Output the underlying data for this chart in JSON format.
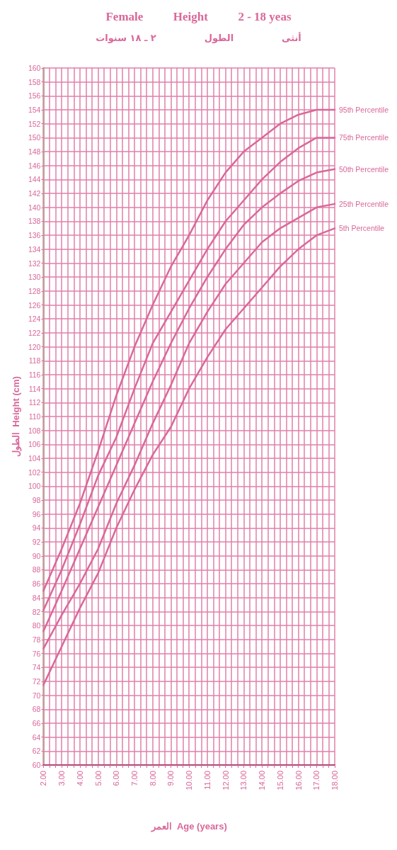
{
  "chart_data": {
    "type": "line",
    "title": "Female          Height          2 - 18 yeas",
    "subtitle": "أنثى               الطول               ٢ ـ ١٨ سنوات",
    "xlabel": "العمر  Age (years)",
    "ylabel": "الطول  Height (cm)",
    "x": [
      2,
      3,
      4,
      5,
      6,
      7,
      8,
      9,
      10,
      11,
      12,
      13,
      14,
      15,
      16,
      17,
      18
    ],
    "series": [
      {
        "name": "95th Percentile",
        "color": "#d9689a",
        "values": [
          85,
          91,
          97.5,
          105,
          113,
          120,
          126,
          131.5,
          136,
          141,
          145,
          148,
          150,
          152,
          153.3,
          154,
          154
        ]
      },
      {
        "name": "75th Percentile",
        "color": "#d9689a",
        "values": [
          82.2,
          88,
          94.5,
          101.5,
          107,
          114,
          120.5,
          125,
          129.5,
          134,
          138,
          141,
          144,
          146.5,
          148.5,
          150,
          150
        ]
      },
      {
        "name": "50th Percentile",
        "color": "#d9689a",
        "values": [
          79.2,
          85,
          91,
          97,
          103,
          109,
          115,
          120.5,
          125.5,
          130,
          134,
          137.5,
          140,
          142,
          143.8,
          145,
          145.5
        ]
      },
      {
        "name": "25th Percentile",
        "color": "#d9689a",
        "values": [
          76.7,
          81.5,
          86,
          91,
          97.5,
          103,
          109,
          114.5,
          120.5,
          125,
          129,
          132,
          135,
          137,
          138.5,
          140,
          140.5
        ]
      },
      {
        "name": "5th Percentile",
        "color": "#d9689a",
        "values": [
          71.5,
          77,
          82.5,
          87.5,
          94,
          99.5,
          104.5,
          108.5,
          114,
          118.5,
          122.5,
          125.5,
          128.5,
          131.5,
          134,
          136,
          137
        ]
      }
    ],
    "xlim": [
      2,
      18
    ],
    "xticks": [
      {
        "value": 2,
        "label": "2.00"
      },
      {
        "value": 2.3333,
        "label": null
      },
      {
        "value": 2.6667,
        "label": null
      },
      {
        "value": 3,
        "label": "3.00"
      },
      {
        "value": 3.3333,
        "label": null
      },
      {
        "value": 3.6667,
        "label": null
      },
      {
        "value": 4,
        "label": "4.00"
      },
      {
        "value": 4.3333,
        "label": null
      },
      {
        "value": 4.6667,
        "label": null
      },
      {
        "value": 5,
        "label": "5.00"
      },
      {
        "value": 5.3333,
        "label": null
      },
      {
        "value": 5.6667,
        "label": null
      },
      {
        "value": 6,
        "label": "6.00"
      },
      {
        "value": 6.3333,
        "label": null
      },
      {
        "value": 6.6667,
        "label": null
      },
      {
        "value": 7,
        "label": "7.00"
      },
      {
        "value": 7.3333,
        "label": null
      },
      {
        "value": 7.6667,
        "label": null
      },
      {
        "value": 8,
        "label": "8.00"
      },
      {
        "value": 8.3333,
        "label": null
      },
      {
        "value": 8.6667,
        "label": null
      },
      {
        "value": 9,
        "label": "9.00"
      },
      {
        "value": 9.3333,
        "label": null
      },
      {
        "value": 9.6667,
        "label": null
      },
      {
        "value": 10,
        "label": "10.00"
      },
      {
        "value": 10.3333,
        "label": null
      },
      {
        "value": 10.6667,
        "label": null
      },
      {
        "value": 11,
        "label": "11.00"
      },
      {
        "value": 11.3333,
        "label": null
      },
      {
        "value": 11.6667,
        "label": null
      },
      {
        "value": 12,
        "label": "12.00"
      },
      {
        "value": 12.3333,
        "label": null
      },
      {
        "value": 12.6667,
        "label": null
      },
      {
        "value": 13,
        "label": "13.00"
      },
      {
        "value": 13.3333,
        "label": null
      },
      {
        "value": 13.6667,
        "label": null
      },
      {
        "value": 14,
        "label": "14.00"
      },
      {
        "value": 14.3333,
        "label": null
      },
      {
        "value": 14.6667,
        "label": null
      },
      {
        "value": 15,
        "label": "15.00"
      },
      {
        "value": 15.3333,
        "label": null
      },
      {
        "value": 15.6667,
        "label": null
      },
      {
        "value": 16,
        "label": "16.00"
      },
      {
        "value": 16.3333,
        "label": null
      },
      {
        "value": 16.6667,
        "label": null
      },
      {
        "value": 17,
        "label": "17.00"
      },
      {
        "value": 17.3333,
        "label": null
      },
      {
        "value": 17.6667,
        "label": null
      },
      {
        "value": 18,
        "label": "18.00"
      }
    ],
    "ylim": [
      60,
      160
    ],
    "yticks": [
      60,
      62,
      64,
      66,
      68,
      70,
      72,
      74,
      76,
      78,
      80,
      82,
      84,
      86,
      88,
      90,
      92,
      94,
      96,
      98,
      100,
      102,
      104,
      106,
      108,
      110,
      112,
      114,
      116,
      118,
      120,
      122,
      124,
      126,
      128,
      130,
      132,
      134,
      136,
      138,
      140,
      142,
      144,
      146,
      148,
      150,
      152,
      154,
      156,
      158,
      160
    ],
    "grid": true,
    "legend": false,
    "marker": "none",
    "line_style": "solid"
  }
}
